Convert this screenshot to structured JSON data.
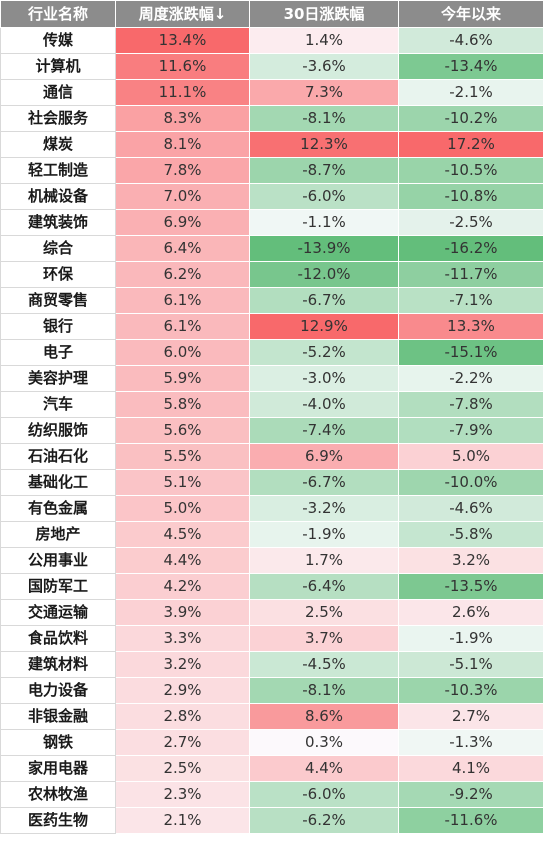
{
  "chart_data": {
    "type": "table",
    "columns": [
      "行业名称",
      "周度涨跌幅↓",
      "30日涨跌幅",
      "今年以来"
    ],
    "rows": [
      {
        "industry": "传媒",
        "weekly": "13.4%",
        "day30": "1.4%",
        "ytd": "-4.6%"
      },
      {
        "industry": "计算机",
        "weekly": "11.6%",
        "day30": "-3.6%",
        "ytd": "-13.4%"
      },
      {
        "industry": "通信",
        "weekly": "11.1%",
        "day30": "7.3%",
        "ytd": "-2.1%"
      },
      {
        "industry": "社会服务",
        "weekly": "8.3%",
        "day30": "-8.1%",
        "ytd": "-10.2%"
      },
      {
        "industry": "煤炭",
        "weekly": "8.1%",
        "day30": "12.3%",
        "ytd": "17.2%"
      },
      {
        "industry": "轻工制造",
        "weekly": "7.8%",
        "day30": "-8.7%",
        "ytd": "-10.5%"
      },
      {
        "industry": "机械设备",
        "weekly": "7.0%",
        "day30": "-6.0%",
        "ytd": "-10.8%"
      },
      {
        "industry": "建筑装饰",
        "weekly": "6.9%",
        "day30": "-1.1%",
        "ytd": "-2.5%"
      },
      {
        "industry": "综合",
        "weekly": "6.4%",
        "day30": "-13.9%",
        "ytd": "-16.2%"
      },
      {
        "industry": "环保",
        "weekly": "6.2%",
        "day30": "-12.0%",
        "ytd": "-11.7%"
      },
      {
        "industry": "商贸零售",
        "weekly": "6.1%",
        "day30": "-6.7%",
        "ytd": "-7.1%"
      },
      {
        "industry": "银行",
        "weekly": "6.1%",
        "day30": "12.9%",
        "ytd": "13.3%"
      },
      {
        "industry": "电子",
        "weekly": "6.0%",
        "day30": "-5.2%",
        "ytd": "-15.1%"
      },
      {
        "industry": "美容护理",
        "weekly": "5.9%",
        "day30": "-3.0%",
        "ytd": "-2.2%"
      },
      {
        "industry": "汽车",
        "weekly": "5.8%",
        "day30": "-4.0%",
        "ytd": "-7.8%"
      },
      {
        "industry": "纺织服饰",
        "weekly": "5.6%",
        "day30": "-7.4%",
        "ytd": "-7.9%"
      },
      {
        "industry": "石油石化",
        "weekly": "5.5%",
        "day30": "6.9%",
        "ytd": "5.0%"
      },
      {
        "industry": "基础化工",
        "weekly": "5.1%",
        "day30": "-6.7%",
        "ytd": "-10.0%"
      },
      {
        "industry": "有色金属",
        "weekly": "5.0%",
        "day30": "-3.2%",
        "ytd": "-4.6%"
      },
      {
        "industry": "房地产",
        "weekly": "4.5%",
        "day30": "-1.9%",
        "ytd": "-5.8%"
      },
      {
        "industry": "公用事业",
        "weekly": "4.4%",
        "day30": "1.7%",
        "ytd": "3.2%"
      },
      {
        "industry": "国防军工",
        "weekly": "4.2%",
        "day30": "-6.4%",
        "ytd": "-13.5%"
      },
      {
        "industry": "交通运输",
        "weekly": "3.9%",
        "day30": "2.5%",
        "ytd": "2.6%"
      },
      {
        "industry": "食品饮料",
        "weekly": "3.3%",
        "day30": "3.7%",
        "ytd": "-1.9%"
      },
      {
        "industry": "建筑材料",
        "weekly": "3.2%",
        "day30": "-4.5%",
        "ytd": "-5.1%"
      },
      {
        "industry": "电力设备",
        "weekly": "2.9%",
        "day30": "-8.1%",
        "ytd": "-10.3%"
      },
      {
        "industry": "非银金融",
        "weekly": "2.8%",
        "day30": "8.6%",
        "ytd": "2.7%"
      },
      {
        "industry": "钢铁",
        "weekly": "2.7%",
        "day30": "0.3%",
        "ytd": "-1.3%"
      },
      {
        "industry": "家用电器",
        "weekly": "2.5%",
        "day30": "4.4%",
        "ytd": "4.1%"
      },
      {
        "industry": "农林牧渔",
        "weekly": "2.3%",
        "day30": "-6.0%",
        "ytd": "-9.2%"
      },
      {
        "industry": "医药生物",
        "weekly": "2.1%",
        "day30": "-6.2%",
        "ytd": "-11.6%"
      }
    ]
  },
  "colors": {
    "header_bg": "#8c8c8c",
    "header_text": "#ffffff",
    "positive_max": "#f8696b",
    "negative_max": "#63be7b",
    "neutral": "#fcfcff"
  }
}
